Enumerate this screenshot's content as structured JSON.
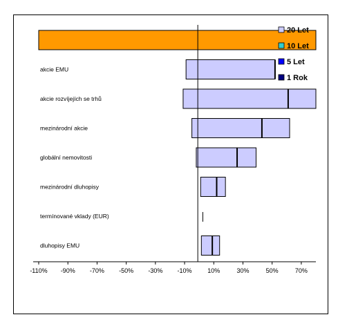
{
  "chart_data": {
    "type": "bar",
    "subtype": "floating-range",
    "title": "",
    "xlabel": "",
    "ylabel": "",
    "xlim": [
      -110,
      80
    ],
    "x_ticks": [
      -110,
      -90,
      -70,
      -50,
      -30,
      -10,
      10,
      30,
      50,
      70
    ],
    "x_tick_labels": [
      "-110%",
      "-90%",
      "-70%",
      "-50%",
      "-30%",
      "-10%",
      "10%",
      "30%",
      "50%",
      "70%"
    ],
    "categories": [
      "",
      "akcie EMU",
      "akcie rozvíjejích se trhů",
      "mezinárodní akcie",
      "globální nemovitosti",
      "mezinárodní dluhopisy",
      "termínované vklady (EUR)",
      "dluhopisy EMU"
    ],
    "series": [
      {
        "name": "",
        "color": "#9999ff",
        "fill": "#ccccff",
        "ranges": [
          [
            -110,
            80
          ],
          [
            -9,
            52
          ],
          [
            -11,
            80
          ],
          [
            -5,
            62
          ],
          [
            -2,
            39
          ],
          [
            1,
            18
          ],
          [
            2.5,
            2.5
          ],
          [
            1.5,
            14
          ]
        ],
        "markers": [
          null,
          52,
          61,
          43,
          26,
          12,
          null,
          9
        ]
      }
    ],
    "highlight": {
      "index": 0,
      "fill": "#ff9900"
    },
    "legend": {
      "position": "top-right",
      "entries": [
        {
          "label": "20 Let",
          "color": "#ccccff"
        },
        {
          "label": "10 Let",
          "color": "#33cccc"
        },
        {
          "label": "5 Let",
          "color": "#0000ff"
        },
        {
          "label": "1 Rok",
          "color": "#000080"
        }
      ]
    },
    "grid": false
  }
}
